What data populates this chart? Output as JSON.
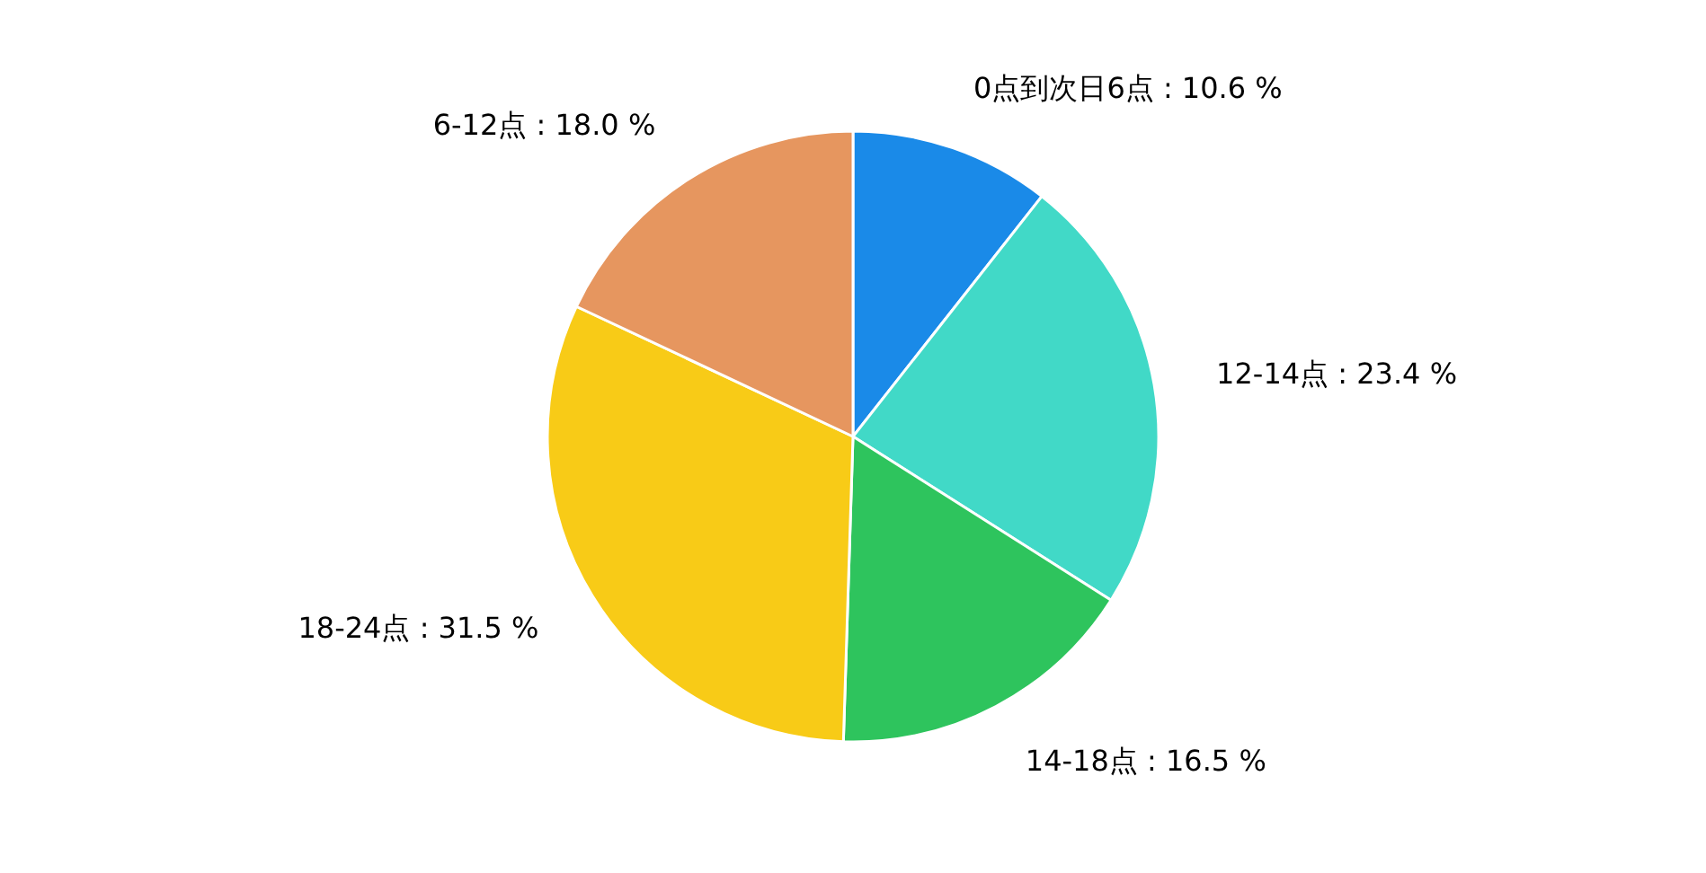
{
  "chart_data": {
    "type": "pie",
    "categories": [
      "0点到次日6点",
      "12-14点",
      "14-18点",
      "18-24点",
      "6-12点"
    ],
    "values": [
      10.6,
      23.4,
      16.5,
      31.5,
      18.0
    ],
    "value_labels": [
      "10.6 %",
      "23.4 %",
      "16.5 %",
      "31.5 %",
      "18.0 %"
    ],
    "colors": [
      "#1a8ae8",
      "#41d9c7",
      "#2ec45d",
      "#f8cb17",
      "#e6965f"
    ]
  }
}
